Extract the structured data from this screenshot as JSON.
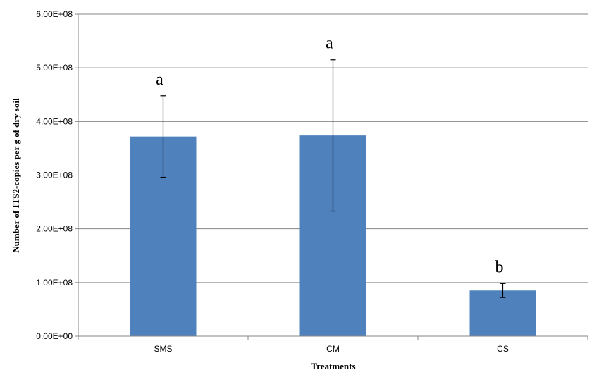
{
  "chart_data": {
    "type": "bar",
    "title": "",
    "xlabel": "Treatments",
    "ylabel": "Number of ITS2-copies per g of dry soil",
    "categories": [
      "SMS",
      "CM",
      "CS"
    ],
    "values": [
      372000000,
      374000000,
      85000000
    ],
    "error": [
      76000000,
      141000000,
      13000000
    ],
    "significance": [
      "a",
      "a",
      "b"
    ],
    "ylim": [
      0,
      600000000
    ],
    "yticks": [
      {
        "value": 0,
        "label": "0.00E+00"
      },
      {
        "value": 100000000,
        "label": "1.00E+08"
      },
      {
        "value": 200000000,
        "label": "2.00E+08"
      },
      {
        "value": 300000000,
        "label": "3.00E+08"
      },
      {
        "value": 400000000,
        "label": "4.00E+08"
      },
      {
        "value": 500000000,
        "label": "5.00E+08"
      },
      {
        "value": 600000000,
        "label": "6.00E+08"
      }
    ],
    "grid": true,
    "legend": "none",
    "colors": {
      "bar": "#4F81BD",
      "grid": "#868686",
      "axis": "#868686",
      "error": "#000000"
    }
  }
}
